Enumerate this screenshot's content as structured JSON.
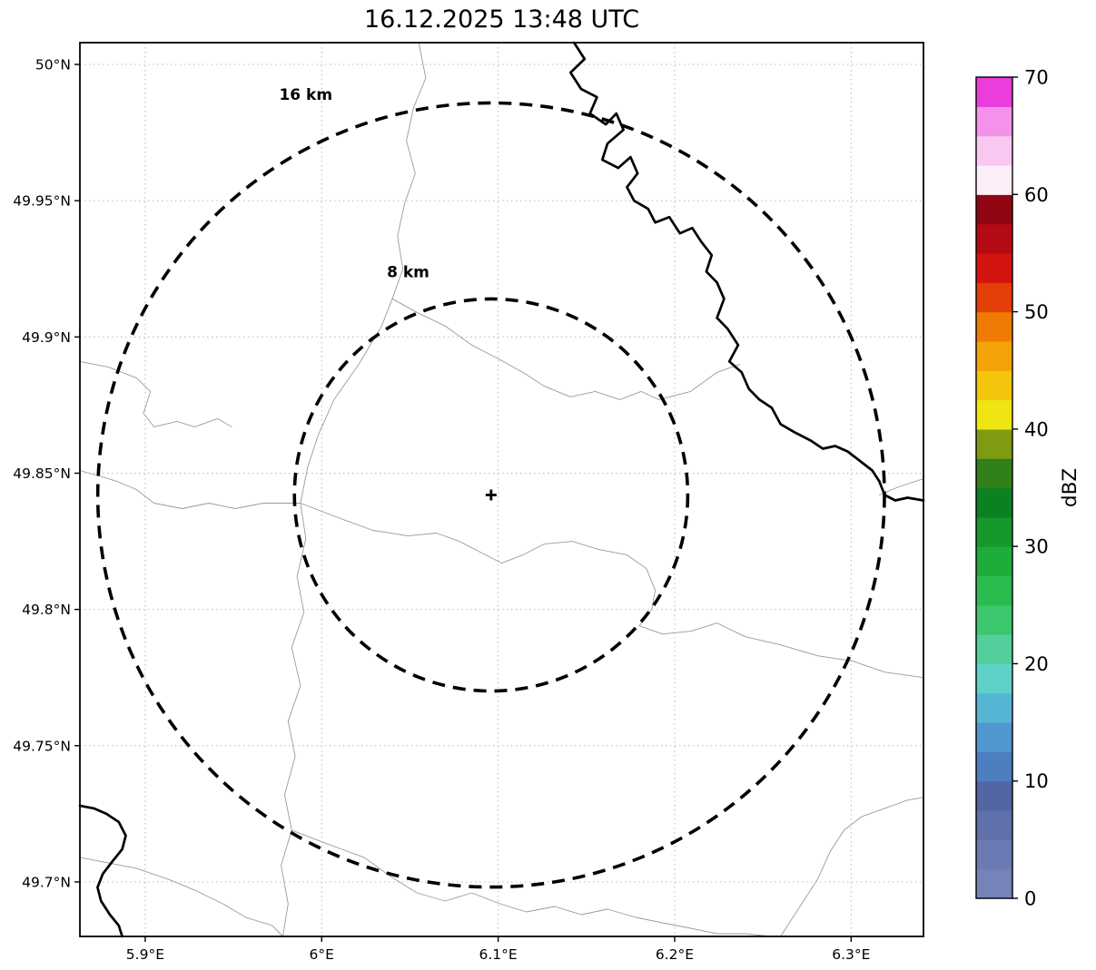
{
  "chart_data": {
    "type": "map",
    "title": "16.12.2025 13:48 UTC",
    "description": "Weather radar range/coverage map with no reflectivity echoes shown (clear map), dashed range rings at 8 km and 16 km around radar site, geographic boundary lines and rivers, dBZ colorbar",
    "x_axis": {
      "tick_labels": [
        "5.9°E",
        "6°E",
        "6.1°E",
        "6.2°E",
        "6.3°E"
      ],
      "tick_values": [
        5.9,
        6.0,
        6.1,
        6.2,
        6.3
      ],
      "range": [
        5.863,
        6.341
      ]
    },
    "y_axis": {
      "tick_labels": [
        "50°N",
        "49.95°N",
        "49.9°N",
        "49.85°N",
        "49.8°N",
        "49.75°N",
        "49.7°N"
      ],
      "tick_values": [
        50.0,
        49.95,
        49.9,
        49.85,
        49.8,
        49.75,
        49.7
      ],
      "range": [
        49.68,
        50.008
      ]
    },
    "grid": true,
    "radar_site": {
      "lon": 6.096,
      "lat": 49.842,
      "marker": "+"
    },
    "range_rings": [
      {
        "radius_km": 8,
        "label": "8 km",
        "label_lon": 6.049,
        "label_lat": 49.922
      },
      {
        "radius_km": 16,
        "label": "16 km",
        "label_lon": 5.991,
        "label_lat": 49.987
      }
    ],
    "radar_echoes": [],
    "colorbar": {
      "label": "dBZ",
      "min": 0,
      "max": 70,
      "tick_values": [
        0,
        10,
        20,
        30,
        40,
        50,
        60,
        70
      ],
      "segment_colors_bottom_to_top": [
        "#7583b8",
        "#6b7ab2",
        "#5f70ab",
        "#5366a4",
        "#4d7ec0",
        "#5096cf",
        "#57b5d4",
        "#5ed2c8",
        "#52cf9a",
        "#3dc76c",
        "#2bbb4f",
        "#1ead3a",
        "#15992c",
        "#0b8121",
        "#31801a",
        "#7e9b12",
        "#f0e513",
        "#f3c60d",
        "#f3a208",
        "#ef7b04",
        "#e33f06",
        "#d31310",
        "#b40a14",
        "#900713",
        "#fceef9",
        "#f9c8f0",
        "#f591e8",
        "#ea3ddb"
      ]
    },
    "map_lines": {
      "rivers_thick": [
        [
          [
            6.143,
            50.008
          ],
          [
            6.149,
            50.002
          ],
          [
            6.141,
            49.997
          ],
          [
            6.147,
            49.991
          ],
          [
            6.156,
            49.988
          ],
          [
            6.152,
            49.982
          ],
          [
            6.161,
            49.978
          ],
          [
            6.167,
            49.982
          ],
          [
            6.171,
            49.976
          ],
          [
            6.162,
            49.971
          ],
          [
            6.159,
            49.965
          ],
          [
            6.168,
            49.962
          ],
          [
            6.175,
            49.966
          ],
          [
            6.179,
            49.96
          ],
          [
            6.173,
            49.955
          ],
          [
            6.177,
            49.95
          ],
          [
            6.185,
            49.947
          ],
          [
            6.189,
            49.942
          ],
          [
            6.197,
            49.944
          ],
          [
            6.203,
            49.938
          ],
          [
            6.21,
            49.94
          ],
          [
            6.215,
            49.935
          ],
          [
            6.221,
            49.93
          ],
          [
            6.218,
            49.924
          ],
          [
            6.224,
            49.92
          ],
          [
            6.228,
            49.914
          ],
          [
            6.224,
            49.907
          ],
          [
            6.23,
            49.903
          ],
          [
            6.236,
            49.897
          ],
          [
            6.231,
            49.891
          ],
          [
            6.238,
            49.887
          ],
          [
            6.242,
            49.881
          ],
          [
            6.248,
            49.877
          ],
          [
            6.255,
            49.874
          ],
          [
            6.26,
            49.868
          ],
          [
            6.268,
            49.865
          ],
          [
            6.277,
            49.862
          ],
          [
            6.284,
            49.859
          ],
          [
            6.291,
            49.86
          ],
          [
            6.298,
            49.858
          ],
          [
            6.306,
            49.854
          ],
          [
            6.312,
            49.851
          ],
          [
            6.316,
            49.847
          ],
          [
            6.319,
            49.842
          ],
          [
            6.325,
            49.84
          ],
          [
            6.332,
            49.841
          ],
          [
            6.341,
            49.84
          ]
        ],
        [
          [
            5.863,
            49.728
          ],
          [
            5.871,
            49.727
          ],
          [
            5.878,
            49.725
          ],
          [
            5.885,
            49.722
          ],
          [
            5.889,
            49.717
          ],
          [
            5.887,
            49.712
          ],
          [
            5.882,
            49.708
          ],
          [
            5.876,
            49.703
          ],
          [
            5.873,
            49.698
          ],
          [
            5.875,
            49.693
          ],
          [
            5.88,
            49.688
          ],
          [
            5.885,
            49.684
          ],
          [
            5.887,
            49.68
          ]
        ]
      ],
      "boundaries_thin": [
        [
          [
            6.055,
            50.008
          ],
          [
            6.059,
            49.995
          ],
          [
            6.052,
            49.984
          ],
          [
            6.048,
            49.972
          ],
          [
            6.053,
            49.96
          ],
          [
            6.047,
            49.949
          ],
          [
            6.043,
            49.937
          ],
          [
            6.046,
            49.925
          ],
          [
            6.04,
            49.914
          ],
          [
            6.034,
            49.904
          ],
          [
            6.021,
            49.89
          ],
          [
            6.007,
            49.877
          ],
          [
            5.998,
            49.864
          ],
          [
            5.992,
            49.852
          ],
          [
            5.988,
            49.839
          ],
          [
            5.991,
            49.826
          ],
          [
            5.986,
            49.812
          ],
          [
            5.99,
            49.799
          ],
          [
            5.983,
            49.786
          ],
          [
            5.988,
            49.772
          ],
          [
            5.981,
            49.759
          ],
          [
            5.985,
            49.746
          ],
          [
            5.979,
            49.732
          ],
          [
            5.983,
            49.719
          ],
          [
            5.977,
            49.706
          ],
          [
            5.981,
            49.692
          ],
          [
            5.978,
            49.68
          ]
        ],
        [
          [
            6.04,
            49.914
          ],
          [
            6.054,
            49.909
          ],
          [
            6.07,
            49.904
          ],
          [
            6.085,
            49.897
          ],
          [
            6.1,
            49.892
          ],
          [
            6.114,
            49.887
          ],
          [
            6.126,
            49.882
          ],
          [
            6.141,
            49.878
          ],
          [
            6.155,
            49.88
          ],
          [
            6.169,
            49.877
          ],
          [
            6.181,
            49.88
          ],
          [
            6.191,
            49.877
          ],
          [
            6.209,
            49.88
          ],
          [
            6.224,
            49.887
          ],
          [
            6.237,
            49.89
          ]
        ],
        [
          [
            5.988,
            49.839
          ],
          [
            6.008,
            49.834
          ],
          [
            6.029,
            49.829
          ],
          [
            6.049,
            49.827
          ],
          [
            6.065,
            49.828
          ],
          [
            6.078,
            49.825
          ],
          [
            6.09,
            49.821
          ],
          [
            6.102,
            49.817
          ],
          [
            6.114,
            49.82
          ],
          [
            6.126,
            49.824
          ],
          [
            6.142,
            49.825
          ],
          [
            6.157,
            49.822
          ],
          [
            6.173,
            49.82
          ],
          [
            6.184,
            49.815
          ],
          [
            6.189,
            49.807
          ],
          [
            6.187,
            49.8
          ],
          [
            6.18,
            49.794
          ],
          [
            6.193,
            49.791
          ],
          [
            6.209,
            49.792
          ],
          [
            6.224,
            49.795
          ],
          [
            6.24,
            49.79
          ],
          [
            6.26,
            49.787
          ],
          [
            6.281,
            49.783
          ],
          [
            6.301,
            49.781
          ],
          [
            6.319,
            49.777
          ],
          [
            6.341,
            49.775
          ]
        ],
        [
          [
            5.863,
            49.891
          ],
          [
            5.879,
            49.889
          ],
          [
            5.895,
            49.885
          ],
          [
            5.903,
            49.88
          ],
          [
            5.899,
            49.872
          ],
          [
            5.905,
            49.867
          ],
          [
            5.918,
            49.869
          ],
          [
            5.928,
            49.867
          ],
          [
            5.941,
            49.87
          ],
          [
            5.949,
            49.867
          ]
        ],
        [
          [
            5.863,
            49.851
          ],
          [
            5.874,
            49.849
          ],
          [
            5.884,
            49.847
          ],
          [
            5.895,
            49.844
          ],
          [
            5.905,
            49.839
          ],
          [
            5.921,
            49.837
          ],
          [
            5.936,
            49.839
          ],
          [
            5.951,
            49.837
          ],
          [
            5.967,
            49.839
          ],
          [
            5.988,
            49.839
          ]
        ],
        [
          [
            5.983,
            49.719
          ],
          [
            6.003,
            49.714
          ],
          [
            6.024,
            49.709
          ],
          [
            6.039,
            49.702
          ],
          [
            6.054,
            49.696
          ],
          [
            6.07,
            49.693
          ],
          [
            6.085,
            49.696
          ],
          [
            6.101,
            49.692
          ],
          [
            6.116,
            49.689
          ],
          [
            6.132,
            49.691
          ],
          [
            6.147,
            49.688
          ],
          [
            6.162,
            49.69
          ],
          [
            6.178,
            49.687
          ],
          [
            6.193,
            49.685
          ],
          [
            6.209,
            49.683
          ],
          [
            6.224,
            49.681
          ],
          [
            6.24,
            49.681
          ],
          [
            6.255,
            49.68
          ]
        ],
        [
          [
            6.26,
            49.68
          ],
          [
            6.271,
            49.691
          ],
          [
            6.281,
            49.701
          ],
          [
            6.288,
            49.711
          ],
          [
            6.296,
            49.719
          ],
          [
            6.306,
            49.724
          ],
          [
            6.319,
            49.727
          ],
          [
            6.332,
            49.73
          ],
          [
            6.341,
            49.731
          ]
        ],
        [
          [
            6.341,
            49.848
          ],
          [
            6.327,
            49.845
          ],
          [
            6.316,
            49.842
          ]
        ],
        [
          [
            5.863,
            49.709
          ],
          [
            5.879,
            49.707
          ],
          [
            5.895,
            49.705
          ],
          [
            5.913,
            49.701
          ],
          [
            5.928,
            49.697
          ],
          [
            5.944,
            49.692
          ],
          [
            5.957,
            49.687
          ],
          [
            5.972,
            49.684
          ],
          [
            5.978,
            49.68
          ]
        ]
      ]
    }
  }
}
